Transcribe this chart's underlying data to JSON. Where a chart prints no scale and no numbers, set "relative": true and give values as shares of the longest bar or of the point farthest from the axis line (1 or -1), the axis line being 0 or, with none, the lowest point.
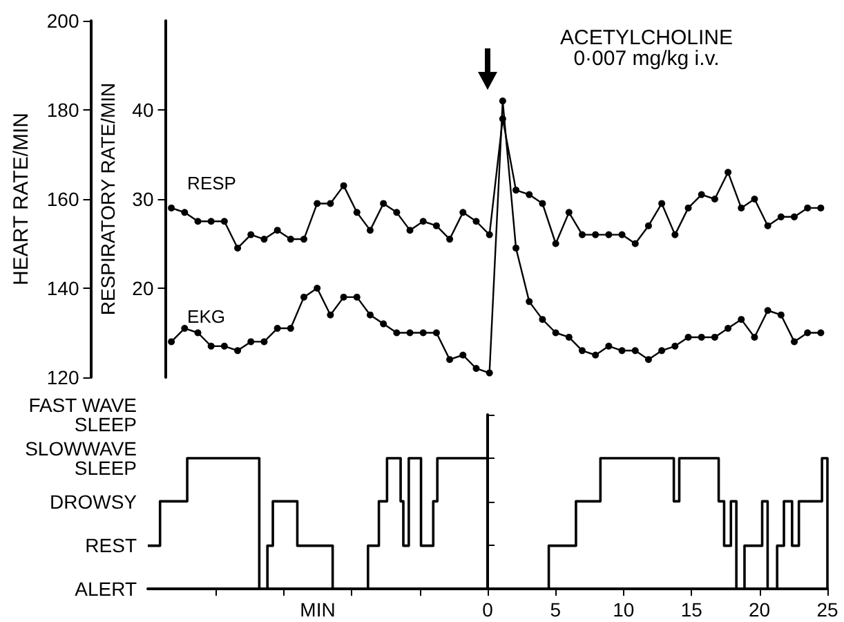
{
  "chart_data": [
    {
      "type": "line",
      "tick_labels": "y",
      "ylabel": "HEART RATE/MIN",
      "y2label": "RESPIRATORY RATE/MIN",
      "ylim": [
        120,
        200
      ],
      "yticks": [
        120,
        140,
        160,
        180,
        200
      ],
      "y2lim": [
        10,
        50
      ],
      "y2ticks": [
        20,
        30,
        40
      ],
      "line_style": "solid",
      "marker": "circle",
      "annotations": [
        "ACETYLCHOLINE\n0·007 mg/kg i.v."
      ],
      "categories": [
        null,
        null,
        null,
        null,
        null,
        null,
        null,
        null,
        null,
        null,
        null,
        null,
        null,
        null,
        null,
        null,
        null,
        null,
        null,
        null,
        null,
        null,
        null,
        null,
        null,
        null,
        null,
        null,
        null,
        null,
        null,
        null,
        null,
        null,
        null,
        null,
        null,
        null,
        null,
        null,
        null,
        null,
        null,
        null,
        null,
        null,
        null,
        null,
        null,
        null
      ],
      "series": [
        {
          "name": "RESP",
          "axis": "y2",
          "color": "#000000",
          "values": [
            29,
            28.5,
            27.5,
            27.5,
            27.5,
            24.5,
            26,
            25.5,
            26.5,
            25.5,
            25.5,
            29.5,
            29.5,
            31.5,
            28.5,
            26.5,
            29.5,
            28.5,
            26.5,
            27.5,
            27,
            25.5,
            28.5,
            27.5,
            26,
            39,
            31,
            30.5,
            29.5,
            25,
            28.5,
            26,
            26,
            26,
            26,
            25,
            27,
            29.5,
            26,
            29,
            30.5,
            30,
            33,
            29,
            30,
            27,
            28,
            28,
            29,
            29
          ]
        },
        {
          "name": "EKG",
          "axis": "y",
          "color": "#000000",
          "values": [
            128,
            131,
            130,
            127,
            127,
            126,
            128,
            128,
            131,
            131,
            138,
            140,
            134,
            138,
            138,
            134,
            132,
            130,
            130,
            130,
            130,
            124,
            125,
            122,
            121,
            182,
            149,
            137,
            133,
            130,
            129,
            126,
            125,
            127,
            126,
            126,
            124,
            126,
            127,
            129,
            129,
            129,
            131,
            133,
            129,
            135,
            134,
            128,
            130,
            130
          ]
        }
      ]
    },
    {
      "type": "step",
      "xlim": [
        -25,
        25
      ],
      "xlabel": "MIN",
      "xticks": [
        {
          "value": -20,
          "label": null
        },
        {
          "value": -15,
          "label": null
        },
        {
          "value": -10,
          "label": null
        },
        {
          "value": -5,
          "label": null
        },
        0,
        5,
        10,
        15,
        20,
        25
      ],
      "relative": true,
      "annotations": [
        "FAST WAVE\nSLEEP",
        "SLOWWAVE\nSLEEP",
        "DROWSY",
        "REST",
        "ALERT"
      ],
      "marker": "none",
      "color": "#000000",
      "x": [
        -25,
        -24.1,
        -22.1,
        -16.8,
        -16.2,
        -15.8,
        -14,
        -11.4,
        -8.8,
        -8,
        -7.4,
        -6.4,
        -6.2,
        -5.8,
        -4.9,
        -4,
        -3.7,
        0,
        4.5,
        6.5,
        8.3,
        13.7,
        14.1,
        17,
        17.4,
        17.9,
        18.3,
        18.9,
        20.2,
        20.6,
        21.3,
        21.8,
        22.4,
        22.9,
        24.6,
        25
      ],
      "values": [
        0.33,
        0.67,
        1,
        0,
        0.33,
        0.67,
        0.33,
        0,
        0.33,
        0.67,
        1,
        0.67,
        0.33,
        1,
        0.33,
        0.67,
        1,
        0,
        0.33,
        0.67,
        1,
        0.67,
        1,
        0.67,
        0.33,
        0.67,
        0,
        0.33,
        0.67,
        0,
        0.33,
        0.67,
        0.33,
        0.67,
        1,
        0
      ]
    }
  ]
}
